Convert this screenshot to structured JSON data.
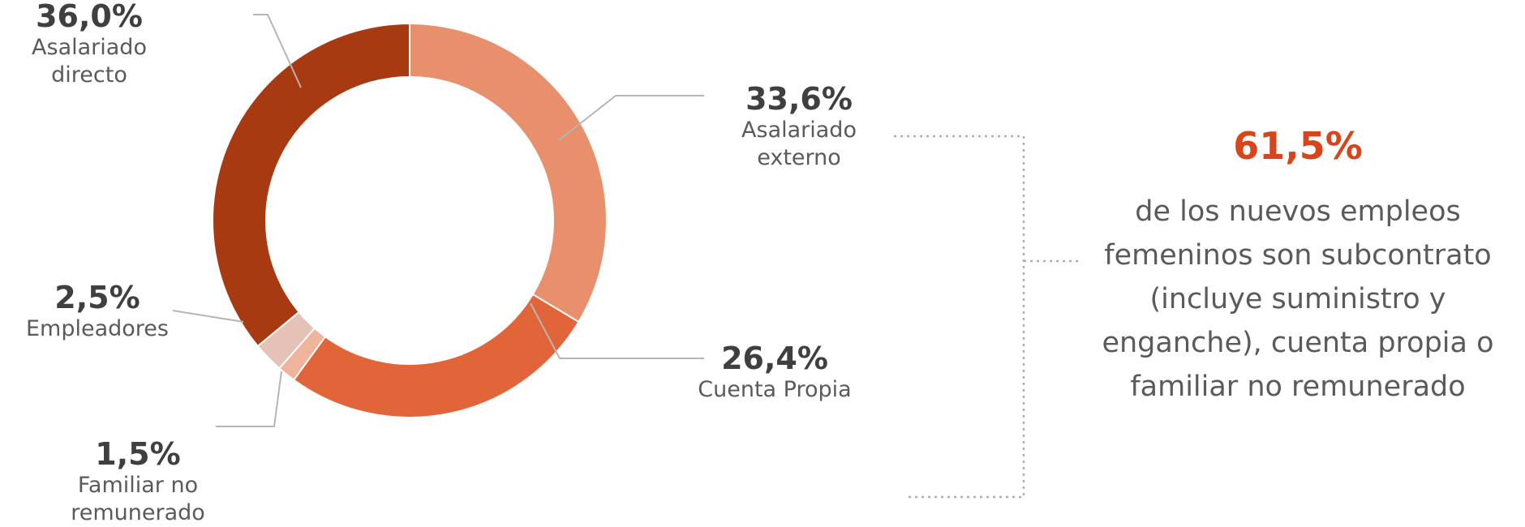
{
  "chart_data": {
    "type": "pie",
    "donut": true,
    "slices": [
      {
        "value": 33.6,
        "pct_label": "33,6%",
        "label": "Asalariado\nexterno",
        "color": "#e8906b"
      },
      {
        "value": 26.4,
        "pct_label": "26,4%",
        "label": "Cuenta Propia",
        "color": "#e2653a"
      },
      {
        "value": 1.5,
        "pct_label": "1,5%",
        "label": "Familiar no\nremunerado",
        "color": "#f0b39b"
      },
      {
        "value": 2.5,
        "pct_label": "2,5%",
        "label": "Empleadores",
        "color": "#e6c2b6"
      },
      {
        "value": 36.0,
        "pct_label": "36,0%",
        "label": "Asalariado\ndirecto",
        "color": "#a83a12"
      }
    ]
  },
  "callout": {
    "value": "61,5%",
    "text": "de los nuevos empleos femeninos son subcontrato (incluye suministro y enganche), cuenta propia o familiar no remunerado"
  }
}
